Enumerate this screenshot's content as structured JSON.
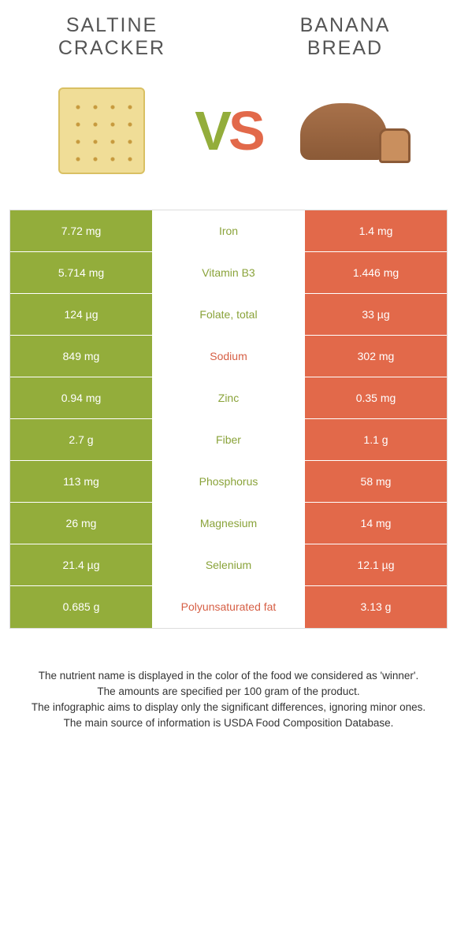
{
  "colors": {
    "green": "#93ad3b",
    "orange": "#e2694a",
    "mid_green_text": "#8aa33a",
    "mid_orange_text": "#d65f45",
    "title_text": "#555555"
  },
  "header": {
    "left_title": "Saltine cracker",
    "right_title": "Banana bread"
  },
  "vs": {
    "v": "V",
    "s": "S"
  },
  "rows": [
    {
      "left": "7.72 mg",
      "label": "Iron",
      "right": "1.4 mg",
      "winner": "left"
    },
    {
      "left": "5.714 mg",
      "label": "Vitamin B3",
      "right": "1.446 mg",
      "winner": "left"
    },
    {
      "left": "124 µg",
      "label": "Folate, total",
      "right": "33 µg",
      "winner": "left"
    },
    {
      "left": "849 mg",
      "label": "Sodium",
      "right": "302 mg",
      "winner": "right"
    },
    {
      "left": "0.94 mg",
      "label": "Zinc",
      "right": "0.35 mg",
      "winner": "left"
    },
    {
      "left": "2.7 g",
      "label": "Fiber",
      "right": "1.1 g",
      "winner": "left"
    },
    {
      "left": "113 mg",
      "label": "Phosphorus",
      "right": "58 mg",
      "winner": "left"
    },
    {
      "left": "26 mg",
      "label": "Magnesium",
      "right": "14 mg",
      "winner": "left"
    },
    {
      "left": "21.4 µg",
      "label": "Selenium",
      "right": "12.1 µg",
      "winner": "left"
    },
    {
      "left": "0.685 g",
      "label": "Polyunsaturated fat",
      "right": "3.13 g",
      "winner": "right"
    }
  ],
  "footnotes": [
    "The nutrient name is displayed in the color of the food we considered as 'winner'.",
    "The amounts are specified per 100 gram of the product.",
    "The infographic aims to display only the significant differences, ignoring minor ones.",
    "The main source of information is USDA Food Composition Database."
  ]
}
